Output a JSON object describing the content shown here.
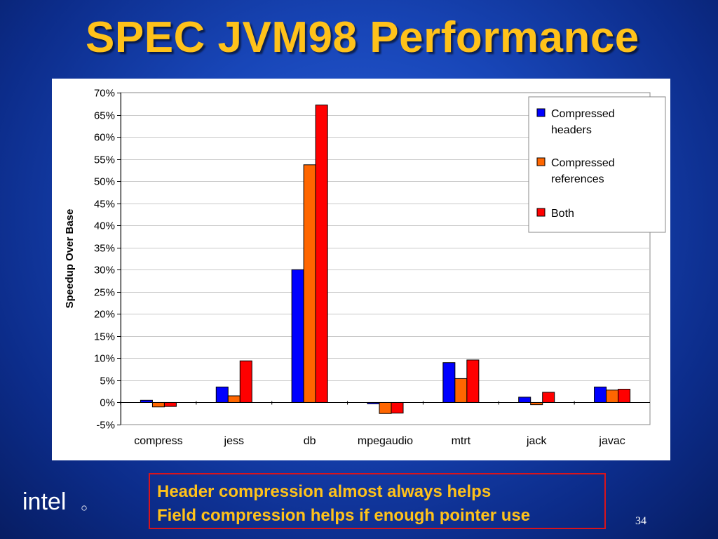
{
  "slide": {
    "title": "SPEC JVM98 Performance",
    "callout_lines": [
      "Header compression almost always helps",
      "Field compression helps if enough pointer use"
    ],
    "logo_text": "intel",
    "page_number": "34"
  },
  "chart_data": {
    "type": "bar",
    "title": "",
    "xlabel": "",
    "ylabel": "Speedup Over Base",
    "ylim": [
      -5,
      70
    ],
    "ytick_step": 5,
    "ytick_labels": [
      "-5%",
      "0%",
      "5%",
      "10%",
      "15%",
      "20%",
      "25%",
      "30%",
      "35%",
      "40%",
      "45%",
      "50%",
      "55%",
      "60%",
      "65%",
      "70%"
    ],
    "categories": [
      "compress",
      "jess",
      "db",
      "mpegaudio",
      "mtrt",
      "jack",
      "javac"
    ],
    "series": [
      {
        "name": "Compressed headers",
        "color": "#0000ff",
        "values": [
          0.5,
          3.5,
          30,
          -0.3,
          9,
          1.2,
          3.5
        ]
      },
      {
        "name": "Compressed references",
        "color": "#ff6600",
        "values": [
          -1,
          1.5,
          53.7,
          -2.5,
          5.4,
          -0.5,
          2.8
        ]
      },
      {
        "name": "Both",
        "color": "#ff0000",
        "values": [
          -0.9,
          9.4,
          67.2,
          -2.4,
          9.6,
          2.3,
          3
        ]
      }
    ],
    "legend_lines": [
      [
        "Compressed",
        "headers"
      ],
      [
        "Compressed",
        "references"
      ],
      [
        "Both"
      ]
    ],
    "legend_position": "top-right",
    "grid": true
  }
}
